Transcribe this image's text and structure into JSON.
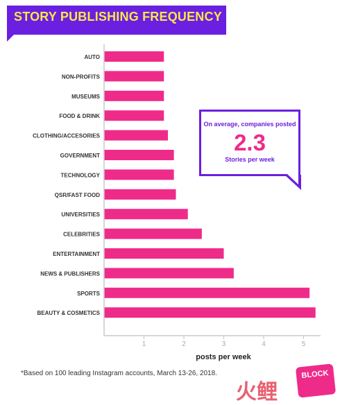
{
  "title": "STORY PUBLISHING FREQUENCY",
  "callout": {
    "line1": "On average, companies posted",
    "value": "2.3",
    "line2": "Stories per week"
  },
  "footnote": "*Based on 100 leading Instagram accounts, March 13-26, 2018.",
  "watermark": "火鲤",
  "logo_text": "BLOCK",
  "colors": {
    "bar": "#ef2b8a",
    "accent": "#6b1fe0",
    "title_text": "#f6e84a"
  },
  "chart_data": {
    "type": "bar",
    "orientation": "horizontal",
    "xlabel": "posts per week",
    "ylabel": "",
    "xlim": [
      0,
      5.4
    ],
    "xticks": [
      1,
      2,
      3,
      4,
      5
    ],
    "grid": false,
    "categories": [
      "AUTO",
      "NON-PROFITS",
      "MUSEUMS",
      "FOOD & DRINK",
      "CLOTHING/ACCESORIES",
      "GOVERNMENT",
      "TECHNOLOGY",
      "QSR/FAST FOOD",
      "UNIVERSITIES",
      "CELEBRITIES",
      "ENTERTAINMENT",
      "NEWS & PUBLISHERS",
      "SPORTS",
      "BEAUTY & COSMETICS"
    ],
    "values": [
      1.5,
      1.5,
      1.5,
      1.5,
      1.6,
      1.75,
      1.75,
      1.8,
      2.1,
      2.45,
      3.0,
      3.25,
      5.15,
      5.3
    ]
  }
}
